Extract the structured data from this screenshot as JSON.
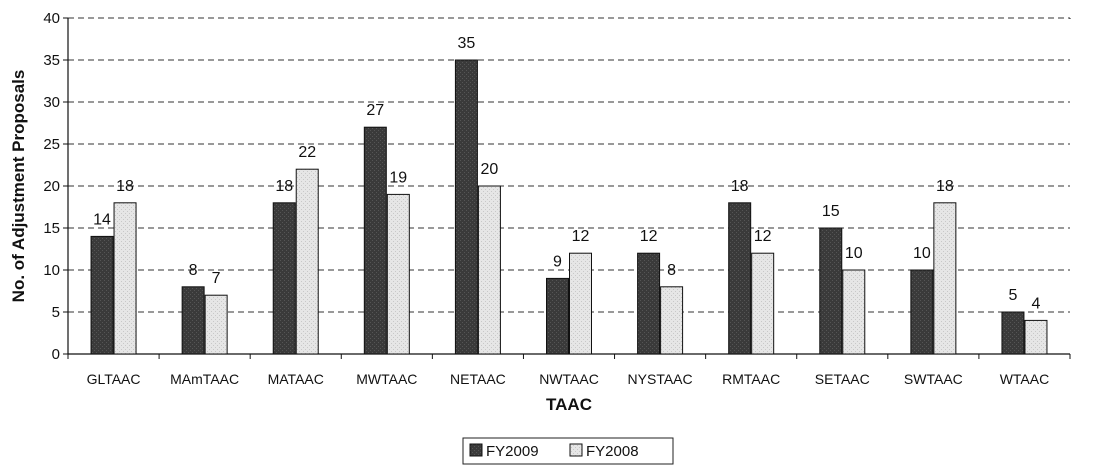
{
  "chart_data": {
    "type": "bar",
    "title": "",
    "xlabel": "TAAC",
    "ylabel": "No. of Adjustment Proposals",
    "ylim": [
      0,
      40
    ],
    "yticks": [
      0,
      5,
      10,
      15,
      20,
      25,
      30,
      35,
      40
    ],
    "grid": true,
    "legend_position": "bottom-center",
    "categories": [
      "GLTAAC",
      "MAmTAAC",
      "MATAAC",
      "MWTAAC",
      "NETAAC",
      "NWTAAC",
      "NYSTAAC",
      "RMTAAC",
      "SETAAC",
      "SWTAAC",
      "WTAAC"
    ],
    "series": [
      {
        "name": "FY2009",
        "color": "#3a3a3a",
        "values": [
          14,
          8,
          18,
          27,
          35,
          9,
          12,
          18,
          15,
          10,
          5
        ]
      },
      {
        "name": "FY2008",
        "color": "#e6e6e6",
        "values": [
          18,
          7,
          22,
          19,
          20,
          12,
          8,
          12,
          10,
          18,
          4
        ]
      }
    ]
  }
}
